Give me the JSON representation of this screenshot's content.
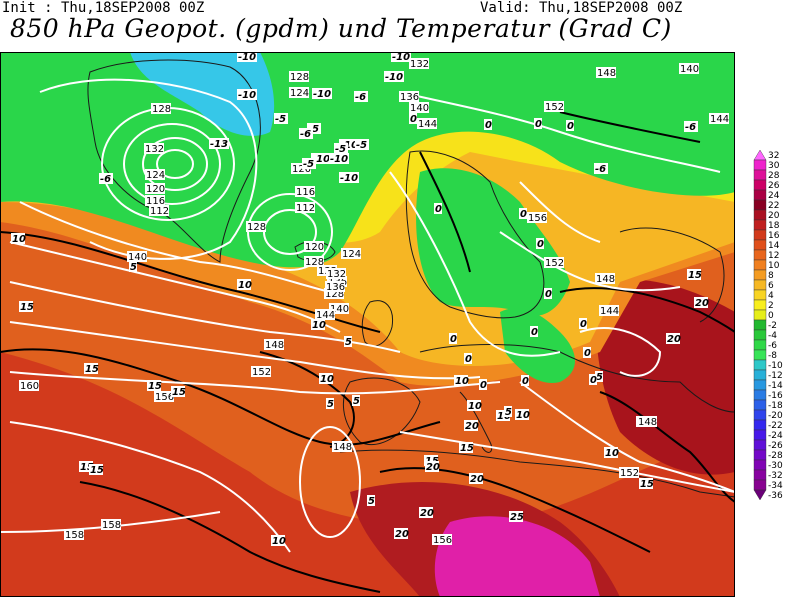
{
  "header": {
    "init": "Init : Thu,18SEP2008 00Z",
    "valid": "Valid: Thu,18SEP2008 00Z",
    "title": "850 hPa Geopot. (gpdm) und Temperatur (Grad C)"
  },
  "colors": {
    "green": "#2ad64a",
    "cyan": "#36c7e8",
    "yellow": "#f7e21a",
    "orange": "#f09020",
    "red_orange": "#e2581c",
    "red": "#c8281c",
    "dark_red": "#8c1020",
    "magenta": "#e81ea8",
    "ocean_bg": "#e86a1c"
  },
  "colorbar": {
    "labels": [
      "32",
      "30",
      "28",
      "26",
      "24",
      "22",
      "20",
      "18",
      "16",
      "14",
      "12",
      "10",
      "8",
      "6",
      "4",
      "2",
      "0",
      "-2",
      "-4",
      "-6",
      "-8",
      "-10",
      "-12",
      "-14",
      "-16",
      "-18",
      "-20",
      "-22",
      "-24",
      "-26",
      "-28",
      "-30",
      "-32",
      "-34",
      "-36"
    ],
    "colors": [
      "#ff66ff",
      "#ee22cc",
      "#dd1199",
      "#cc0066",
      "#aa0044",
      "#880022",
      "#aa1122",
      "#c02020",
      "#d23a1c",
      "#e0501c",
      "#e8661e",
      "#f08020",
      "#f49c22",
      "#f6b824",
      "#f8d424",
      "#f8ee1e",
      "#e6ee1a",
      "#22b830",
      "#2ac83a",
      "#30d848",
      "#38e458",
      "#2ec8c8",
      "#28b0d8",
      "#2898e0",
      "#2a7ce4",
      "#2c60e8",
      "#3044ec",
      "#3428ee",
      "#4818e8",
      "#6010d8",
      "#7408c8",
      "#8004b4",
      "#8802a0",
      "#880290",
      "#6a0078"
    ]
  },
  "heights": [
    {
      "v": "128"
    },
    {
      "v": "132"
    },
    {
      "v": "124"
    },
    {
      "v": "120"
    },
    {
      "v": "116"
    },
    {
      "v": "112"
    },
    {
      "v": "128"
    },
    {
      "v": "124"
    },
    {
      "v": "120"
    },
    {
      "v": "116"
    },
    {
      "v": "112"
    },
    {
      "v": "132"
    },
    {
      "v": "128"
    },
    {
      "v": "136"
    },
    {
      "v": "140"
    },
    {
      "v": "120"
    },
    {
      "v": "128"
    },
    {
      "v": "124"
    },
    {
      "v": "132"
    },
    {
      "v": "136"
    },
    {
      "v": "140"
    },
    {
      "v": "144"
    },
    {
      "v": "148"
    },
    {
      "v": "152"
    },
    {
      "v": "156"
    },
    {
      "v": "160"
    },
    {
      "v": "148"
    },
    {
      "v": "158"
    },
    {
      "v": "158"
    },
    {
      "v": "156"
    },
    {
      "v": "132"
    },
    {
      "v": "136"
    },
    {
      "v": "140"
    },
    {
      "v": "144"
    },
    {
      "v": "148"
    },
    {
      "v": "152"
    },
    {
      "v": "156"
    },
    {
      "v": "152"
    },
    {
      "v": "148"
    },
    {
      "v": "144"
    },
    {
      "v": "148"
    },
    {
      "v": "152"
    },
    {
      "v": "148"
    },
    {
      "v": "140"
    },
    {
      "v": "144"
    },
    {
      "v": "128"
    }
  ],
  "temps": [
    {
      "v": "-10"
    },
    {
      "v": "-10"
    },
    {
      "v": "-10"
    },
    {
      "v": "-6"
    },
    {
      "v": "-10"
    },
    {
      "v": "-13"
    },
    {
      "v": "-6"
    },
    {
      "v": "-5"
    },
    {
      "v": "-5"
    },
    {
      "v": "-10"
    },
    {
      "v": "-10"
    },
    {
      "v": "-6"
    },
    {
      "v": "-10"
    },
    {
      "v": "-10"
    },
    {
      "v": "-10"
    },
    {
      "v": "-5"
    },
    {
      "v": "0"
    },
    {
      "v": "0"
    },
    {
      "v": "0"
    },
    {
      "v": "-6"
    },
    {
      "v": "-6"
    },
    {
      "v": "-5"
    },
    {
      "v": "-5"
    },
    {
      "v": "0"
    },
    {
      "v": "0"
    },
    {
      "v": "0"
    },
    {
      "v": "0"
    },
    {
      "v": "0"
    },
    {
      "v": "0"
    },
    {
      "v": "0"
    },
    {
      "v": "0"
    },
    {
      "v": "0"
    },
    {
      "v": "5"
    },
    {
      "v": "10"
    },
    {
      "v": "15"
    },
    {
      "v": "15"
    },
    {
      "v": "15"
    },
    {
      "v": "15"
    },
    {
      "v": "5"
    },
    {
      "v": "10"
    },
    {
      "v": "5"
    },
    {
      "v": "5"
    },
    {
      "v": "10"
    },
    {
      "v": "10"
    },
    {
      "v": "10"
    },
    {
      "v": "15"
    },
    {
      "v": "15"
    },
    {
      "v": "20"
    },
    {
      "v": "20"
    },
    {
      "v": "25"
    },
    {
      "v": "20"
    },
    {
      "v": "20"
    },
    {
      "v": "20"
    },
    {
      "v": "15"
    },
    {
      "v": "15"
    },
    {
      "v": "15"
    },
    {
      "v": "20"
    },
    {
      "v": "20"
    },
    {
      "v": "10"
    },
    {
      "v": "10"
    },
    {
      "v": "10"
    },
    {
      "v": "5"
    },
    {
      "v": "5"
    },
    {
      "v": "0"
    },
    {
      "v": "0"
    },
    {
      "v": "0"
    },
    {
      "v": "0"
    },
    {
      "v": "15"
    },
    {
      "v": "10"
    },
    {
      "v": "10"
    },
    {
      "v": "5"
    }
  ]
}
